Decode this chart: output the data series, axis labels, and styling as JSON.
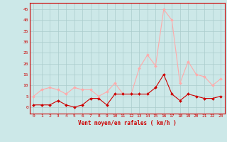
{
  "x": [
    0,
    1,
    2,
    3,
    4,
    5,
    6,
    7,
    8,
    9,
    10,
    11,
    12,
    13,
    14,
    15,
    16,
    17,
    18,
    19,
    20,
    21,
    22,
    23
  ],
  "wind_avg": [
    1,
    1,
    1,
    3,
    1,
    0,
    1,
    4,
    4,
    1,
    6,
    6,
    6,
    6,
    6,
    9,
    15,
    6,
    3,
    6,
    5,
    4,
    4,
    5
  ],
  "wind_gust": [
    5,
    8,
    9,
    8,
    6,
    9,
    8,
    8,
    5,
    7,
    11,
    6,
    6,
    18,
    24,
    19,
    45,
    40,
    11,
    21,
    15,
    14,
    10,
    13
  ],
  "avg_color": "#cc0000",
  "gust_color": "#ffaaaa",
  "bg_color": "#cce8e8",
  "grid_color": "#aacccc",
  "xlabel": "Vent moyen/en rafales ( km/h )",
  "xlabel_color": "#cc0000",
  "yticks": [
    0,
    5,
    10,
    15,
    20,
    25,
    30,
    35,
    40,
    45
  ],
  "xticks": [
    0,
    1,
    2,
    3,
    4,
    5,
    6,
    7,
    8,
    9,
    10,
    11,
    12,
    13,
    14,
    15,
    16,
    17,
    18,
    19,
    20,
    21,
    22,
    23
  ],
  "ylim": [
    -3,
    48
  ],
  "xlim": [
    -0.5,
    23.5
  ]
}
